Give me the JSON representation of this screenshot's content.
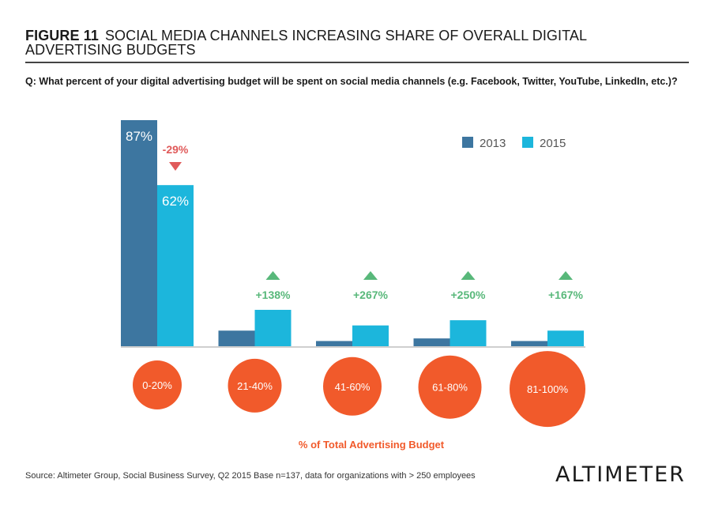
{
  "title": {
    "figure": "FIGURE 11",
    "text": "SOCIAL MEDIA CHANNELS INCREASING SHARE OF OVERALL DIGITAL ADVERTISING BUDGETS"
  },
  "question": "Q: What percent of your digital advertising budget will be spent on social media channels (e.g. Facebook, Twitter, YouTube, LinkedIn, etc.)?",
  "source": "Altimeter Group, Social Business Survey, Q2 2015 Base n=137, data for organizations with > 250 employees",
  "logo": "ALTIMETER",
  "colors": {
    "series_2013": "#3d76a0",
    "series_2015": "#1cb6dc",
    "category_circle": "#f15a2b",
    "increase": "#58b87a",
    "decrease": "#e05a5a"
  },
  "chart_data": {
    "type": "bar",
    "xlabel": "% of Total Advertising Budget",
    "categories": [
      "0-20%",
      "21-40%",
      "41-60%",
      "61-80%",
      "81-100%"
    ],
    "series": [
      {
        "name": "2013",
        "values": [
          87,
          6,
          2,
          3,
          2
        ]
      },
      {
        "name": "2015",
        "values": [
          62,
          14,
          8,
          10,
          6
        ]
      }
    ],
    "data_labels": [
      "87%",
      "62%"
    ],
    "changes": [
      "-29%",
      "+138%",
      "+267%",
      "+250%",
      "+167%"
    ],
    "ylim": [
      0,
      87
    ],
    "legend": "top-right",
    "grid": false
  }
}
